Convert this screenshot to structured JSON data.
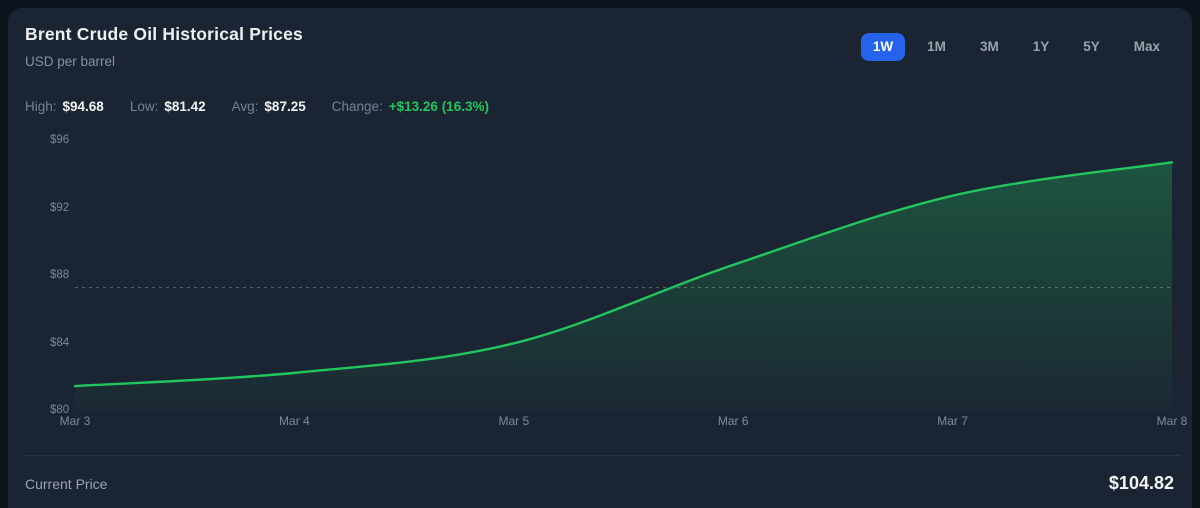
{
  "header": {
    "title": "Brent Crude Oil Historical Prices",
    "subtitle": "USD per barrel"
  },
  "range_buttons": [
    {
      "label": "1W",
      "selected": true
    },
    {
      "label": "1M",
      "selected": false
    },
    {
      "label": "3M",
      "selected": false
    },
    {
      "label": "1Y",
      "selected": false
    },
    {
      "label": "5Y",
      "selected": false
    },
    {
      "label": "Max",
      "selected": false
    }
  ],
  "stats": [
    {
      "label": "High:",
      "value": "$94.68",
      "highlight": false
    },
    {
      "label": "Low:",
      "value": "$81.42",
      "highlight": false
    },
    {
      "label": "Avg:",
      "value": "$87.25",
      "highlight": false
    },
    {
      "label": "Change:",
      "value": "+$13.26 (16.3%)",
      "highlight": true
    }
  ],
  "chart_data": {
    "type": "area",
    "title": "Brent Crude Oil Historical Prices",
    "xlabel": "",
    "ylabel": "USD per barrel",
    "x": [
      "Mar 3",
      "Mar 4",
      "Mar 5",
      "Mar 6",
      "Mar 7",
      "Mar 8"
    ],
    "values": [
      81.42,
      82.2,
      83.95,
      88.6,
      92.7,
      94.68
    ],
    "ylim": [
      80,
      96
    ],
    "yticks": [
      {
        "label": "$96",
        "value": 96
      },
      {
        "label": "$92",
        "value": 92
      },
      {
        "label": "$88",
        "value": 88
      },
      {
        "label": "$84",
        "value": 84
      },
      {
        "label": "$80",
        "value": 80
      }
    ],
    "avg_line": {
      "value": 87.25,
      "style": "dashed"
    },
    "grid": false,
    "legend": false,
    "line_color": "#22c55e",
    "fill_color": "#22c55e"
  },
  "footer": {
    "label": "Current Price",
    "value": "$104.82"
  },
  "colors": {
    "accent_green": "#22c55e",
    "accent_blue": "#2563eb",
    "card_bg": "#1b2432",
    "page_bg": "#0d141d"
  }
}
